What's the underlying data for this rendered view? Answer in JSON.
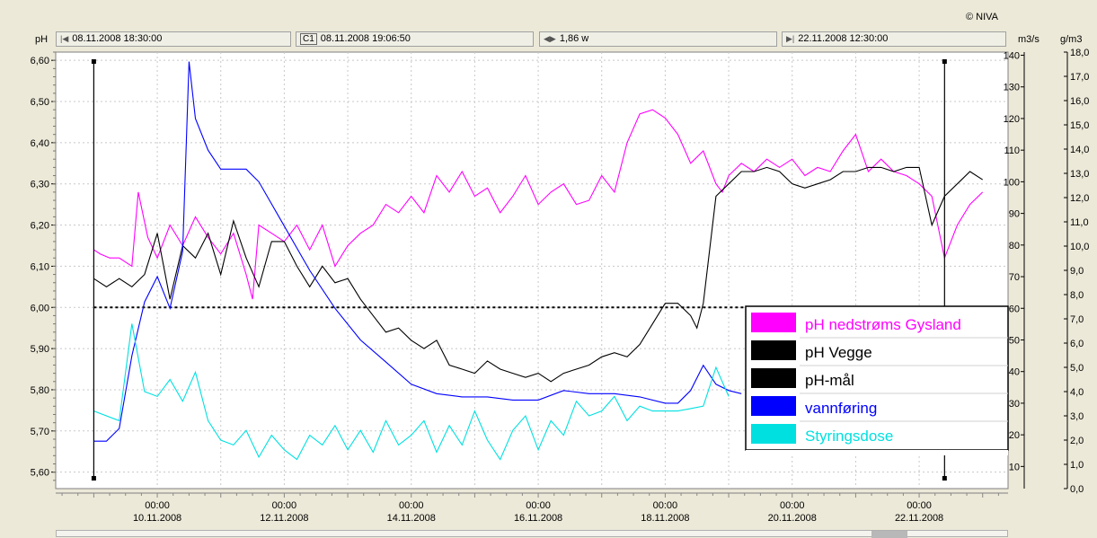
{
  "copyright": "© NIVA",
  "toolbar": {
    "left_unit": "pH",
    "start_time": "08.11.2008 18:30:00",
    "cursor_label": "C1",
    "cursor_time": "08.11.2008 19:06:50",
    "span": "1,86 w",
    "end_time": "22.11.2008 12:30:00",
    "unit_flow": "m3/s",
    "unit_dose": "g/m3"
  },
  "chart_data": {
    "type": "line",
    "y_left": {
      "label": "pH",
      "range": [
        5.56,
        6.62
      ],
      "ticks": [
        "6,60",
        "6,50",
        "6,40",
        "6,30",
        "6,20",
        "6,10",
        "6,00",
        "5,90",
        "5,80",
        "5,70",
        "5,60"
      ]
    },
    "y_right1": {
      "label": "m3/s",
      "range": [
        3,
        141
      ],
      "ticks": [
        "140",
        "130",
        "120",
        "110",
        "100",
        "90",
        "80",
        "70",
        "60",
        "50",
        "40",
        "30",
        "20",
        "10"
      ]
    },
    "y_right2": {
      "label": "g/m3",
      "range": [
        0,
        18
      ],
      "ticks": [
        "18,0",
        "17,0",
        "16,0",
        "15,0",
        "14,0",
        "13,0",
        "12,0",
        "11,0",
        "10,0",
        "9,0",
        "8,0",
        "7,0",
        "6,0",
        "5,0",
        "4,0",
        "3,0",
        "2,0",
        "1,0",
        "0,0"
      ]
    },
    "x_ticks": [
      {
        "time": "00:00",
        "date": "10.11.2008"
      },
      {
        "time": "00:00",
        "date": "12.11.2008"
      },
      {
        "time": "00:00",
        "date": "14.11.2008"
      },
      {
        "time": "00:00",
        "date": "16.11.2008"
      },
      {
        "time": "00:00",
        "date": "18.11.2008"
      },
      {
        "time": "00:00",
        "date": "20.11.2008"
      },
      {
        "time": "00:00",
        "date": "22.11.2008"
      }
    ],
    "grid": true,
    "legend_position": "bottom-right",
    "reference_line": {
      "series": "pH-mål",
      "value": 6.0
    },
    "series": [
      {
        "name": "pH nedstrøms Gysland",
        "color": "#ff00ff",
        "axis": "left",
        "x": [
          0,
          0.1,
          0.25,
          0.4,
          0.6,
          0.7,
          0.85,
          1.0,
          1.2,
          1.4,
          1.6,
          1.8,
          2.0,
          2.2,
          2.4,
          2.5,
          2.6,
          2.8,
          3.0,
          3.2,
          3.4,
          3.6,
          3.8,
          4.0,
          4.2,
          4.4,
          4.6,
          4.8,
          5.0,
          5.2,
          5.4,
          5.6,
          5.8,
          6.0,
          6.2,
          6.4,
          6.6,
          6.8,
          7.0,
          7.2,
          7.4,
          7.6,
          7.8,
          8.0,
          8.2,
          8.4,
          8.6,
          8.8,
          9.0,
          9.2,
          9.4,
          9.6,
          9.8,
          9.9,
          10.0,
          10.2,
          10.4,
          10.6,
          10.8,
          11.0,
          11.2,
          11.4,
          11.6,
          11.8,
          12.0,
          12.2,
          12.4,
          12.6,
          12.8,
          13.0,
          13.2,
          13.4,
          13.6,
          13.8,
          14.0
        ],
        "y": [
          6.14,
          6.13,
          6.12,
          6.12,
          6.1,
          6.28,
          6.17,
          6.12,
          6.2,
          6.15,
          6.22,
          6.17,
          6.13,
          6.18,
          6.08,
          6.02,
          6.2,
          6.18,
          6.16,
          6.2,
          6.14,
          6.2,
          6.1,
          6.15,
          6.18,
          6.2,
          6.25,
          6.23,
          6.27,
          6.23,
          6.32,
          6.28,
          6.33,
          6.27,
          6.29,
          6.23,
          6.27,
          6.32,
          6.25,
          6.28,
          6.3,
          6.25,
          6.26,
          6.32,
          6.28,
          6.4,
          6.47,
          6.48,
          6.46,
          6.42,
          6.35,
          6.38,
          6.3,
          6.28,
          6.32,
          6.35,
          6.33,
          6.36,
          6.34,
          6.36,
          6.32,
          6.34,
          6.33,
          6.38,
          6.42,
          6.33,
          6.36,
          6.33,
          6.32,
          6.3,
          6.27,
          6.12,
          6.2,
          6.25,
          6.28
        ]
      },
      {
        "name": "pH Vegge",
        "color": "#000000",
        "axis": "left",
        "x": [
          0,
          0.2,
          0.4,
          0.6,
          0.8,
          1.0,
          1.2,
          1.4,
          1.6,
          1.8,
          2.0,
          2.2,
          2.4,
          2.6,
          2.8,
          3.0,
          3.2,
          3.4,
          3.6,
          3.8,
          4.0,
          4.2,
          4.4,
          4.6,
          4.8,
          5.0,
          5.2,
          5.4,
          5.6,
          5.8,
          6.0,
          6.2,
          6.4,
          6.6,
          6.8,
          7.0,
          7.2,
          7.4,
          7.6,
          7.8,
          8.0,
          8.2,
          8.4,
          8.6,
          8.8,
          9.0,
          9.2,
          9.4,
          9.5,
          9.6,
          9.8,
          10.0,
          10.2,
          10.4,
          10.6,
          10.8,
          11.0,
          11.2,
          11.4,
          11.6,
          11.8,
          12.0,
          12.2,
          12.4,
          12.6,
          12.8,
          13.0,
          13.2,
          13.4,
          13.6,
          13.8,
          14.0
        ],
        "y": [
          6.07,
          6.05,
          6.07,
          6.05,
          6.08,
          6.18,
          6.02,
          6.15,
          6.12,
          6.18,
          6.08,
          6.21,
          6.12,
          6.05,
          6.16,
          6.16,
          6.1,
          6.05,
          6.1,
          6.06,
          6.07,
          6.02,
          5.98,
          5.94,
          5.95,
          5.92,
          5.9,
          5.92,
          5.86,
          5.85,
          5.84,
          5.87,
          5.85,
          5.84,
          5.83,
          5.84,
          5.82,
          5.84,
          5.85,
          5.86,
          5.88,
          5.89,
          5.88,
          5.91,
          5.96,
          6.01,
          6.01,
          5.98,
          5.95,
          6.01,
          6.27,
          6.3,
          6.33,
          6.33,
          6.34,
          6.33,
          6.3,
          6.29,
          6.3,
          6.31,
          6.33,
          6.33,
          6.34,
          6.34,
          6.33,
          6.34,
          6.34,
          6.2,
          6.27,
          6.3,
          6.33,
          6.31
        ]
      },
      {
        "name": "pH-mål",
        "color": "#000000",
        "axis": "left",
        "dashed": true,
        "x": [
          0,
          14.0
        ],
        "y": [
          6.0,
          6.0
        ]
      },
      {
        "name": "vannføring",
        "color": "#0000ff",
        "axis": "right1",
        "x": [
          0,
          0.2,
          0.4,
          0.6,
          0.8,
          1.0,
          1.2,
          1.4,
          1.5,
          1.6,
          1.8,
          2.0,
          2.2,
          2.4,
          2.6,
          3.0,
          3.4,
          3.8,
          4.2,
          4.6,
          5.0,
          5.4,
          5.8,
          6.2,
          6.6,
          7.0,
          7.4,
          7.8,
          8.2,
          8.6,
          9.0,
          9.2,
          9.4,
          9.6,
          9.8,
          10.0,
          10.2
        ],
        "y": [
          18,
          18,
          22,
          45,
          62,
          70,
          60,
          78,
          138,
          120,
          110,
          104,
          104,
          104,
          100,
          86,
          72,
          60,
          50,
          43,
          36,
          33,
          32,
          32,
          31,
          31,
          34,
          33,
          33,
          32,
          30,
          30,
          34,
          42,
          36,
          34,
          33
        ]
      },
      {
        "name": "Styringsdose",
        "color": "#00e0e0",
        "axis": "right2",
        "x": [
          0,
          0.4,
          0.6,
          0.8,
          1.0,
          1.2,
          1.4,
          1.6,
          1.8,
          2.0,
          2.2,
          2.4,
          2.6,
          2.8,
          3.0,
          3.2,
          3.4,
          3.6,
          3.8,
          4.0,
          4.2,
          4.4,
          4.6,
          4.8,
          5.0,
          5.2,
          5.4,
          5.6,
          5.8,
          6.0,
          6.2,
          6.4,
          6.6,
          6.8,
          7.0,
          7.2,
          7.4,
          7.6,
          7.8,
          8.0,
          8.2,
          8.4,
          8.6,
          8.8,
          9.0,
          9.2,
          9.4,
          9.6,
          9.8,
          10.0
        ],
        "y": [
          3.2,
          2.8,
          6.8,
          4.0,
          3.8,
          4.5,
          3.6,
          4.8,
          2.8,
          2.0,
          1.8,
          2.4,
          1.3,
          2.2,
          1.6,
          1.2,
          2.2,
          1.8,
          2.6,
          1.6,
          2.4,
          1.5,
          2.8,
          1.8,
          2.2,
          2.8,
          1.5,
          2.6,
          1.8,
          3.2,
          2.0,
          1.2,
          2.4,
          3.0,
          1.6,
          2.8,
          2.2,
          3.6,
          3.0,
          3.2,
          3.8,
          2.8,
          3.4,
          3.2,
          3.2,
          3.2,
          3.3,
          3.4,
          5.0,
          3.8
        ]
      }
    ],
    "cursors": [
      {
        "x": 0
      },
      {
        "x": 13.4
      }
    ]
  }
}
